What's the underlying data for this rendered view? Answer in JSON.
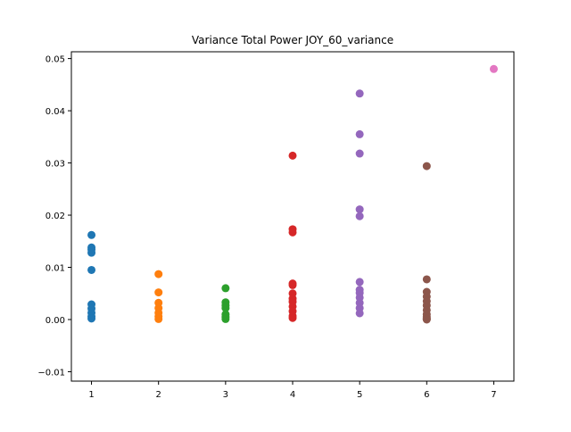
{
  "chart_data": {
    "type": "scatter",
    "title": "Variance Total Power JOY_60_variance",
    "xlabel": "",
    "ylabel": "",
    "xlim": [
      0.7,
      7.3
    ],
    "ylim": [
      -0.0118,
      0.0513
    ],
    "grid": false,
    "x_ticks": [
      1,
      2,
      3,
      4,
      5,
      6,
      7
    ],
    "x_tick_labels": [
      "1",
      "2",
      "3",
      "4",
      "5",
      "6",
      "7"
    ],
    "y_ticks": [
      -0.01,
      0.0,
      0.01,
      0.02,
      0.03,
      0.04,
      0.05
    ],
    "y_tick_labels": [
      "−0.01",
      "0.00",
      "0.01",
      "0.02",
      "0.03",
      "0.04",
      "0.05"
    ],
    "series": [
      {
        "color": "#1f77b4",
        "x": [
          1,
          1,
          1,
          1,
          1,
          1,
          1,
          1,
          1,
          1
        ],
        "y": [
          0.0162,
          0.0138,
          0.0134,
          0.0128,
          0.0095,
          0.0029,
          0.0021,
          0.0013,
          0.0006,
          0.0002
        ]
      },
      {
        "color": "#ff7f0e",
        "x": [
          2,
          2,
          2,
          2,
          2,
          2,
          2
        ],
        "y": [
          0.0087,
          0.0052,
          0.0032,
          0.0022,
          0.0013,
          0.0006,
          0.0001
        ]
      },
      {
        "color": "#2ca02c",
        "x": [
          3,
          3,
          3,
          3,
          3,
          3,
          3
        ],
        "y": [
          0.006,
          0.0033,
          0.0027,
          0.0022,
          0.001,
          0.0005,
          0.0001
        ]
      },
      {
        "color": "#d62728",
        "x": [
          4,
          4,
          4,
          4,
          4,
          4,
          4,
          4,
          4,
          4,
          4,
          4
        ],
        "y": [
          0.0314,
          0.0173,
          0.0167,
          0.0069,
          0.0066,
          0.005,
          0.004,
          0.0034,
          0.0025,
          0.0016,
          0.0007,
          0.0003
        ]
      },
      {
        "color": "#9467bd",
        "x": [
          5,
          5,
          5,
          5,
          5,
          5,
          5,
          5,
          5,
          5,
          5,
          5
        ],
        "y": [
          0.0433,
          0.0355,
          0.0318,
          0.0211,
          0.0198,
          0.0072,
          0.0057,
          0.0051,
          0.0042,
          0.0032,
          0.0022,
          0.0012
        ]
      },
      {
        "color": "#8c564b",
        "x": [
          6,
          6,
          6,
          6,
          6,
          6,
          6,
          6,
          6,
          6,
          6,
          6
        ],
        "y": [
          0.0294,
          0.0077,
          0.0053,
          0.0044,
          0.0035,
          0.0027,
          0.0018,
          0.001,
          0.0005,
          0.0002,
          0.0001,
          0.0
        ]
      },
      {
        "color": "#e377c2",
        "x": [
          7
        ],
        "y": [
          0.048
        ]
      }
    ]
  }
}
